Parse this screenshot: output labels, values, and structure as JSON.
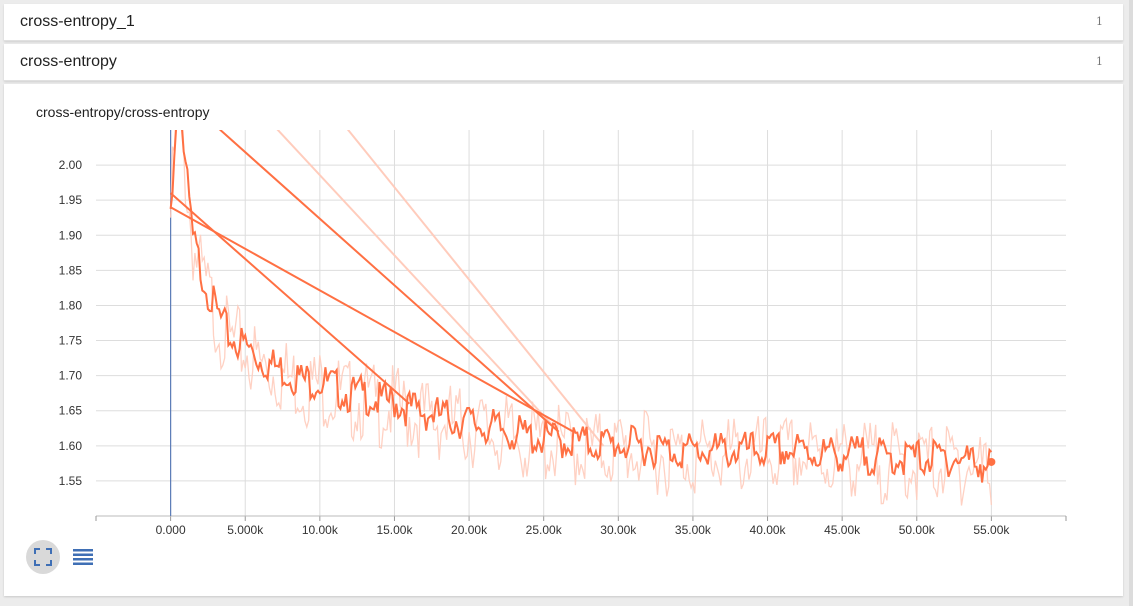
{
  "groups": [
    {
      "title": "cross-entropy_1",
      "count": "1"
    },
    {
      "title": "cross-entropy",
      "count": "1"
    }
  ],
  "card": {
    "title": "cross-entropy/cross-entropy",
    "buttons": {
      "expand": "fullscreen-icon",
      "data": "data-table-icon"
    }
  },
  "colors": {
    "series": "#ff7043",
    "series_faint": "#ffccbc",
    "axis_line": "#5c7cb8",
    "grid": "#dddddd",
    "tick_text": "#333333"
  },
  "chart_data": {
    "type": "line",
    "title": "cross-entropy/cross-entropy",
    "xlabel": "",
    "ylabel": "",
    "xlim": [
      -5000,
      60000
    ],
    "ylim": [
      1.5,
      2.05
    ],
    "x_ticks": [
      "0.000",
      "5.000k",
      "10.00k",
      "15.00k",
      "20.00k",
      "25.00k",
      "30.00k",
      "35.00k",
      "40.00k",
      "45.00k",
      "50.00k",
      "55.00k"
    ],
    "y_ticks": [
      "1.55",
      "1.60",
      "1.65",
      "1.70",
      "1.75",
      "1.80",
      "1.85",
      "1.90",
      "1.95",
      "2.00"
    ],
    "grid": true,
    "legend": "none",
    "series": [
      {
        "x": [
          0,
          300,
          600,
          1000,
          1500,
          2000,
          2500,
          3000,
          3500,
          4000,
          5000,
          6000,
          7000,
          8000,
          9000,
          10000,
          11000,
          12000,
          13000,
          14000,
          15000,
          16000,
          17000,
          18000,
          19000,
          20000,
          22000,
          24000,
          26000,
          28000,
          30000,
          32000,
          34000,
          36000,
          38000,
          40000,
          42000,
          44000,
          46000,
          48000,
          50000,
          52000,
          54000,
          55000
        ],
        "y": [
          1.94,
          2.05,
          2.1,
          2.0,
          1.9,
          1.86,
          1.83,
          1.8,
          1.78,
          1.76,
          1.75,
          1.73,
          1.72,
          1.71,
          1.7,
          1.7,
          1.69,
          1.68,
          1.68,
          1.67,
          1.67,
          1.66,
          1.655,
          1.65,
          1.645,
          1.64,
          1.63,
          1.62,
          1.615,
          1.61,
          1.61,
          1.605,
          1.6,
          1.6,
          1.6,
          1.6,
          1.6,
          1.595,
          1.595,
          1.59,
          1.59,
          1.59,
          1.585,
          1.577
        ]
      }
    ],
    "restart_segments": [
      {
        "x": [
          0,
          27000
        ],
        "y": [
          1.94,
          1.62
        ]
      },
      {
        "x": [
          0,
          16000
        ],
        "y": [
          1.96,
          1.66
        ]
      },
      {
        "x": [
          700,
          26000
        ],
        "y": [
          2.1,
          1.62
        ]
      }
    ],
    "faint_segments": [
      {
        "x": [
          5000,
          26000
        ],
        "y": [
          2.1,
          1.62
        ]
      },
      {
        "x": [
          10000,
          29000
        ],
        "y": [
          2.1,
          1.6
        ]
      }
    ]
  }
}
